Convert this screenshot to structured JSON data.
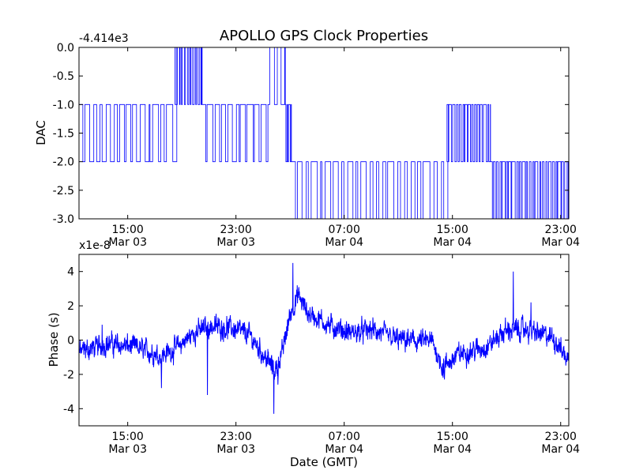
{
  "title": "APOLLO GPS Clock Properties",
  "xlabel": "Date (GMT)",
  "x_ticks": [
    {
      "t": 15,
      "time": "15:00",
      "date": "Mar 03"
    },
    {
      "t": 23,
      "time": "23:00",
      "date": "Mar 03"
    },
    {
      "t": 31,
      "time": "07:00",
      "date": "Mar 04"
    },
    {
      "t": 39,
      "time": "15:00",
      "date": "Mar 04"
    },
    {
      "t": 47,
      "time": "23:00",
      "date": "Mar 04"
    }
  ],
  "line_color": "#0000ff",
  "chart_data": [
    {
      "type": "line",
      "name": "dac",
      "ylabel": "DAC",
      "offset_label": "-4.414e3",
      "x_unit": "hours since 00:00 Mar 03 (GMT)",
      "xlim": [
        11.4,
        47.6
      ],
      "ylim": [
        -3.0,
        0.0
      ],
      "yticks": [
        "0.0",
        "-0.5",
        "-1.0",
        "-1.5",
        "-2.0",
        "-2.5",
        "-3.0"
      ],
      "ytick_values": [
        0.0,
        -0.5,
        -1.0,
        -1.5,
        -2.0,
        -2.5,
        -3.0
      ],
      "segments": [
        {
          "x": [
            11.4,
            18.5
          ],
          "base": -1,
          "alt": -2,
          "flips": 14
        },
        {
          "x": [
            18.5,
            20.5
          ],
          "base": 0,
          "alt": -1,
          "flips": 10
        },
        {
          "x": [
            20.5,
            25.5
          ],
          "base": -1,
          "alt": -2,
          "flips": 10
        },
        {
          "x": [
            25.5,
            26.6
          ],
          "base": 0,
          "alt": -1,
          "flips": 2
        },
        {
          "x": [
            26.6,
            27.1
          ],
          "base": -1,
          "alt": -2,
          "flips": 3
        },
        {
          "x": [
            27.1,
            38.6
          ],
          "base": -2,
          "alt": -3,
          "flips": 22
        },
        {
          "x": [
            38.6,
            41.8
          ],
          "base": -1,
          "alt": -2,
          "flips": 14
        },
        {
          "x": [
            41.8,
            47.6
          ],
          "base": -2,
          "alt": -3,
          "flips": 24
        }
      ]
    },
    {
      "type": "line",
      "name": "phase",
      "ylabel": "Phase (s)",
      "offset_label": "x1e-8",
      "x_unit": "hours since 00:00 Mar 03 (GMT)",
      "xlim": [
        11.4,
        47.6
      ],
      "ylim": [
        -5,
        5
      ],
      "yticks": [
        "4",
        "2",
        "0",
        "-2",
        "-4"
      ],
      "ytick_values": [
        4,
        2,
        0,
        -2,
        -4
      ],
      "baseline": [
        [
          11.4,
          -0.7
        ],
        [
          13.5,
          -0.2
        ],
        [
          15.5,
          -0.4
        ],
        [
          17.5,
          -0.9
        ],
        [
          18.7,
          -0.4
        ],
        [
          20.0,
          0.5
        ],
        [
          21.2,
          0.8
        ],
        [
          22.7,
          0.7
        ],
        [
          24.0,
          0.3
        ],
        [
          25.0,
          -0.8
        ],
        [
          25.9,
          -1.8
        ],
        [
          26.4,
          -0.8
        ],
        [
          27.0,
          1.5
        ],
        [
          27.6,
          2.6
        ],
        [
          28.3,
          1.6
        ],
        [
          30.0,
          0.8
        ],
        [
          31.5,
          0.4
        ],
        [
          33.0,
          0.6
        ],
        [
          35.0,
          0.0
        ],
        [
          37.5,
          -0.1
        ],
        [
          38.3,
          -1.6
        ],
        [
          39.5,
          -0.8
        ],
        [
          41.5,
          -0.4
        ],
        [
          43.0,
          0.6
        ],
        [
          44.5,
          0.6
        ],
        [
          46.5,
          0.1
        ],
        [
          47.6,
          -1.2
        ]
      ],
      "noise_amplitude": 0.55,
      "spikes": [
        {
          "x": 13.1,
          "y": 0.9
        },
        {
          "x": 17.5,
          "y": -2.8
        },
        {
          "x": 20.7,
          "y": 1.3
        },
        {
          "x": 20.9,
          "y": -3.2
        },
        {
          "x": 25.8,
          "y": -4.3
        },
        {
          "x": 26.1,
          "y": -2.6
        },
        {
          "x": 27.2,
          "y": 4.5
        },
        {
          "x": 38.4,
          "y": -2.3
        },
        {
          "x": 43.5,
          "y": 4.0
        },
        {
          "x": 44.8,
          "y": 2.2
        }
      ]
    }
  ]
}
